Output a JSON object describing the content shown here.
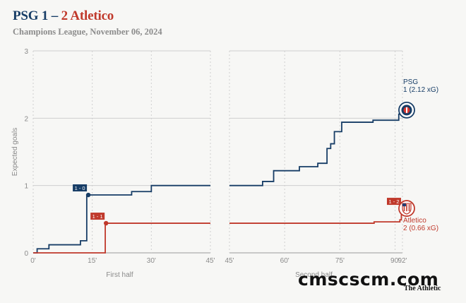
{
  "header": {
    "home_part": "PSG 1",
    "dash": " – ",
    "away_part": "2 Atletico",
    "subtitle": "Champions League, November 06, 2024"
  },
  "brand": {
    "watermark": "cmscscm.com",
    "publisher": "The Athletic"
  },
  "colors": {
    "home": "#173d66",
    "away": "#c0392b",
    "grid": "#cfcfcf",
    "axis_text": "#8a8a8a"
  },
  "chart_data": {
    "type": "line",
    "step": true,
    "ylabel": "Expected goals",
    "ylim": [
      0,
      3
    ],
    "yticks": [
      0,
      1,
      2,
      3
    ],
    "panels": [
      {
        "label": "First half",
        "xlim": [
          0,
          45
        ],
        "xticks": [
          0,
          15,
          30,
          45
        ],
        "xtick_labels": [
          "0'",
          "15'",
          "30'",
          "45'"
        ]
      },
      {
        "label": "Second half",
        "xlim": [
          45,
          92
        ],
        "xticks": [
          45,
          60,
          75,
          90,
          92
        ],
        "xtick_labels": [
          "45'",
          "60'",
          "75'",
          "90'",
          "92'"
        ]
      }
    ],
    "series": [
      {
        "key": "home",
        "name": "PSG",
        "end_label_line1": "PSG",
        "end_label_line2": "1 (2.12 xG)",
        "first_half": [
          [
            0,
            0
          ],
          [
            1,
            0.06
          ],
          [
            4,
            0.12
          ],
          [
            12,
            0.18
          ],
          [
            13.6,
            0.86
          ],
          [
            25,
            0.91
          ],
          [
            30,
            1.0
          ],
          [
            45,
            1.0
          ]
        ],
        "second_half": [
          [
            45,
            1.0
          ],
          [
            54,
            1.06
          ],
          [
            57,
            1.22
          ],
          [
            64,
            1.28
          ],
          [
            69,
            1.33
          ],
          [
            71.5,
            1.55
          ],
          [
            72.5,
            1.62
          ],
          [
            73.5,
            1.8
          ],
          [
            75.5,
            1.94
          ],
          [
            84,
            1.97
          ],
          [
            91,
            2.06
          ],
          [
            92,
            2.12
          ]
        ]
      },
      {
        "key": "away",
        "name": "Atletico",
        "end_label_line1": "Atletico",
        "end_label_line2": "2 (0.66 xG)",
        "first_half": [
          [
            0,
            0
          ],
          [
            18,
            0
          ],
          [
            18.3,
            0.44
          ],
          [
            45,
            0.44
          ]
        ],
        "second_half": [
          [
            45,
            0.44
          ],
          [
            84,
            0.44
          ],
          [
            84.3,
            0.46
          ],
          [
            91.3,
            0.49
          ],
          [
            91.7,
            0.66
          ],
          [
            92,
            0.66
          ]
        ]
      }
    ],
    "goals": [
      {
        "team": "home",
        "label": "1 - 0",
        "minute": 14,
        "xg": 0.86
      },
      {
        "team": "away",
        "label": "1 - 1",
        "minute": 18.5,
        "xg": 0.44
      },
      {
        "team": "away",
        "label": "1 - 2",
        "minute": 92,
        "xg": 0.66
      }
    ]
  }
}
